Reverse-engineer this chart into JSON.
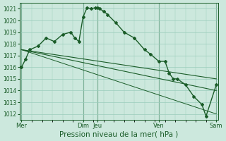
{
  "bg_color": "#cce8dd",
  "grid_color": "#99ccbb",
  "line_color": "#1a5c28",
  "marker_color": "#1a5c28",
  "xlabel": "Pression niveau de la mer( hPa )",
  "xlabel_fontsize": 7.5,
  "ylim": [
    1011.5,
    1021.5
  ],
  "yticks": [
    1012,
    1013,
    1014,
    1015,
    1016,
    1017,
    1018,
    1019,
    1020,
    1021
  ],
  "xtick_labels": [
    "Mer",
    "Dim",
    "Jeu",
    "Ven",
    "Sam"
  ],
  "xtick_positions": [
    0,
    30,
    37,
    67,
    95
  ],
  "vline_positions": [
    0,
    30,
    37,
    67,
    95
  ],
  "total_points": 96,
  "series1_x": [
    0,
    2,
    4,
    8,
    12,
    16,
    20,
    24,
    26,
    28,
    30,
    32,
    34,
    36,
    37,
    38,
    40,
    42,
    46,
    50,
    55,
    60,
    63,
    67,
    70,
    72,
    74,
    76,
    80,
    84,
    88,
    90,
    95
  ],
  "series1_y": [
    1016.0,
    1016.7,
    1017.5,
    1017.8,
    1018.5,
    1018.2,
    1018.8,
    1019.0,
    1018.5,
    1018.2,
    1020.3,
    1021.1,
    1021.0,
    1021.1,
    1021.1,
    1021.0,
    1020.8,
    1020.5,
    1019.8,
    1019.0,
    1018.5,
    1017.5,
    1017.1,
    1016.5,
    1016.5,
    1015.5,
    1015.0,
    1015.0,
    1014.5,
    1013.5,
    1012.8,
    1011.8,
    1014.5
  ],
  "series2_x": [
    0,
    95
  ],
  "series2_y": [
    1017.5,
    1015.0
  ],
  "series3_x": [
    0,
    95
  ],
  "series3_y": [
    1017.5,
    1014.0
  ],
  "series4_x": [
    0,
    95
  ],
  "series4_y": [
    1017.5,
    1012.0
  ]
}
